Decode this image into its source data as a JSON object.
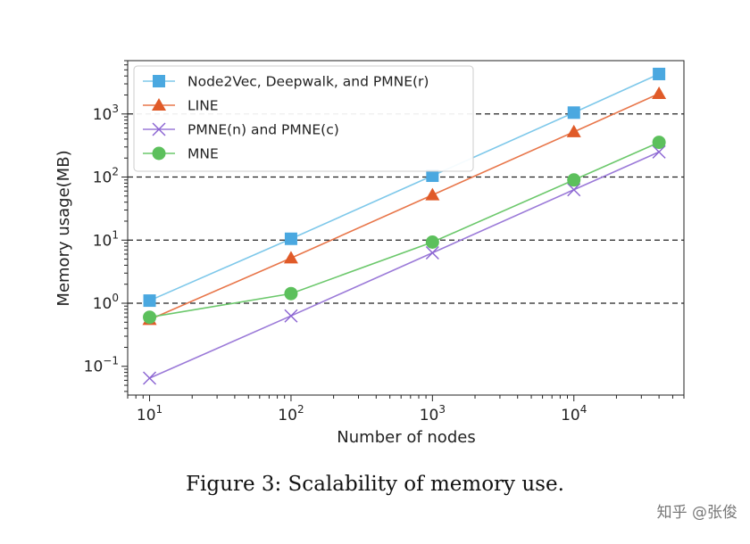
{
  "chart_data": {
    "type": "line",
    "xscale": "log",
    "yscale": "log",
    "xlabel": "Number of nodes",
    "ylabel": "Memory usage(MB)",
    "xlim": [
      7,
      60000
    ],
    "ylim": [
      0.035,
      7000
    ],
    "xticks": [
      {
        "value": 10,
        "base": "10",
        "exp": "1"
      },
      {
        "value": 100,
        "base": "10",
        "exp": "2"
      },
      {
        "value": 1000,
        "base": "10",
        "exp": "3"
      },
      {
        "value": 10000,
        "base": "10",
        "exp": "4"
      }
    ],
    "yticks": [
      {
        "value": 0.1,
        "base": "10",
        "exp": "−1"
      },
      {
        "value": 1,
        "base": "10",
        "exp": "0"
      },
      {
        "value": 10,
        "base": "10",
        "exp": "1"
      },
      {
        "value": 100,
        "base": "10",
        "exp": "2"
      },
      {
        "value": 1000,
        "base": "10",
        "exp": "3"
      }
    ],
    "grid_y_values": [
      1,
      10,
      100,
      1000
    ],
    "grid_style": "dashed",
    "legend_position": "top-left",
    "x": [
      10,
      100,
      1000,
      10000,
      40000
    ],
    "series": [
      {
        "name": "Node2Vec, Deepwalk, and PMNE(r)",
        "values": [
          1.1,
          10.5,
          105,
          1050,
          4300
        ],
        "color": "#4aa8e0",
        "line_color": "#7ec8ea",
        "marker": "square"
      },
      {
        "name": "LINE",
        "values": [
          0.55,
          5.2,
          52,
          520,
          2100
        ],
        "color": "#e05a28",
        "line_color": "#e8764a",
        "marker": "triangle"
      },
      {
        "name": "PMNE(n) and PMNE(c)",
        "values": [
          0.065,
          0.63,
          6.3,
          63,
          250
        ],
        "color": "#8a63d2",
        "line_color": "#9b7ad8",
        "marker": "x"
      },
      {
        "name": "MNE",
        "values": [
          0.6,
          1.42,
          9.3,
          90,
          355
        ],
        "color": "#5cc05c",
        "line_color": "#6cc86c",
        "marker": "circle"
      }
    ]
  },
  "caption": "Figure 3: Scalability of memory use.",
  "watermark": "知乎 @张俊"
}
